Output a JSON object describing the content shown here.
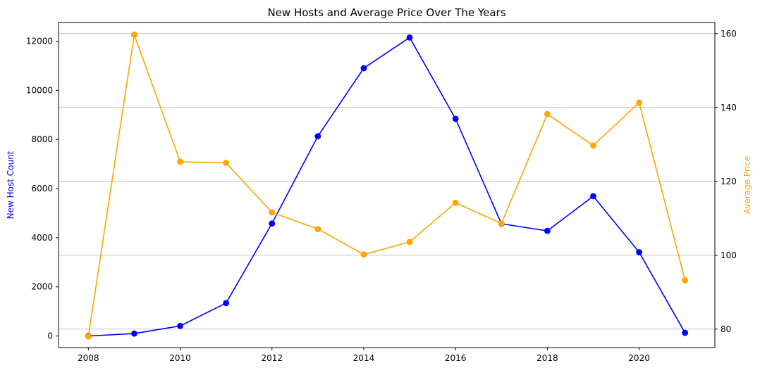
{
  "chart_data": {
    "type": "line",
    "title": "New Hosts and Average Price Over The Years",
    "xlabel": "",
    "x": [
      2008,
      2009,
      2010,
      2011,
      2012,
      2013,
      2014,
      2015,
      2016,
      2017,
      2018,
      2019,
      2020,
      2021
    ],
    "xticks": [
      "2008",
      "2010",
      "2012",
      "2014",
      "2016",
      "2018",
      "2020"
    ],
    "xlim": [
      2007.35,
      2021.65
    ],
    "grid": "horizontal gridlines at right-axis ticks",
    "left_axis": {
      "label": "New Host Count",
      "color": "#0000ff",
      "ylim": [
        -470,
        12760
      ],
      "ticks": [
        "0",
        "2000",
        "4000",
        "6000",
        "8000",
        "10000",
        "12000"
      ]
    },
    "right_axis": {
      "label": "Average Price",
      "color": "#ffa500",
      "ylim": [
        75,
        163
      ],
      "ticks": [
        "80",
        "100",
        "120",
        "140",
        "160"
      ]
    },
    "series": [
      {
        "axis": "left",
        "color": "#0000ff",
        "marker": "circle",
        "values": [
          0,
          100,
          410,
          1340,
          4580,
          8130,
          10900,
          12150,
          8840,
          4570,
          4280,
          5690,
          3410,
          130
        ]
      },
      {
        "axis": "right",
        "color": "#ffa500",
        "marker": "circle",
        "values": [
          78,
          159.7,
          125.3,
          125,
          111.6,
          107.1,
          100.2,
          103.6,
          114.2,
          108.6,
          138.2,
          129.7,
          141.3,
          93.2
        ]
      }
    ]
  }
}
